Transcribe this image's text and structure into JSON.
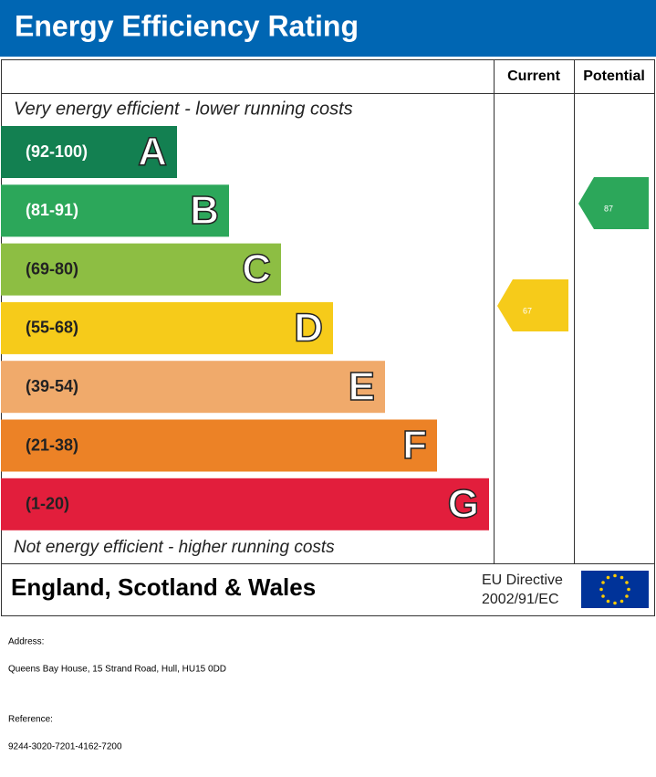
{
  "header": {
    "title": "Energy Efficiency Rating"
  },
  "columns": {
    "current": "Current",
    "potential": "Potential"
  },
  "top_note": "Very energy efficient - lower running costs",
  "bottom_note": "Not energy efficient - higher running costs",
  "bands": [
    {
      "range": "(92-100)",
      "letter": "A",
      "color": "#138051"
    },
    {
      "range": "(81-91)",
      "letter": "B",
      "color": "#2ca75a"
    },
    {
      "range": "(69-80)",
      "letter": "C",
      "color": "#8dbe43"
    },
    {
      "range": "(55-68)",
      "letter": "D",
      "color": "#f6cb1a"
    },
    {
      "range": "(39-54)",
      "letter": "E",
      "color": "#f0aa6b"
    },
    {
      "range": "(21-38)",
      "letter": "F",
      "color": "#ec8226"
    },
    {
      "range": "(1-20)",
      "letter": "G",
      "color": "#e21e3c"
    }
  ],
  "current": {
    "rating": "67",
    "color": "#f6cb1a"
  },
  "potential": {
    "rating": "87",
    "color": "#2ca75a"
  },
  "footer": {
    "region": "England, Scotland & Wales",
    "directive_line1": "EU Directive",
    "directive_line2": "2002/91/EC"
  },
  "address": {
    "label": "Address:",
    "value": "Queens Bay House, 15 Strand Road, Hull, HU15 0DD"
  },
  "reference": {
    "label": "Reference:",
    "value": "9244-3020-7201-4162-7200"
  }
}
